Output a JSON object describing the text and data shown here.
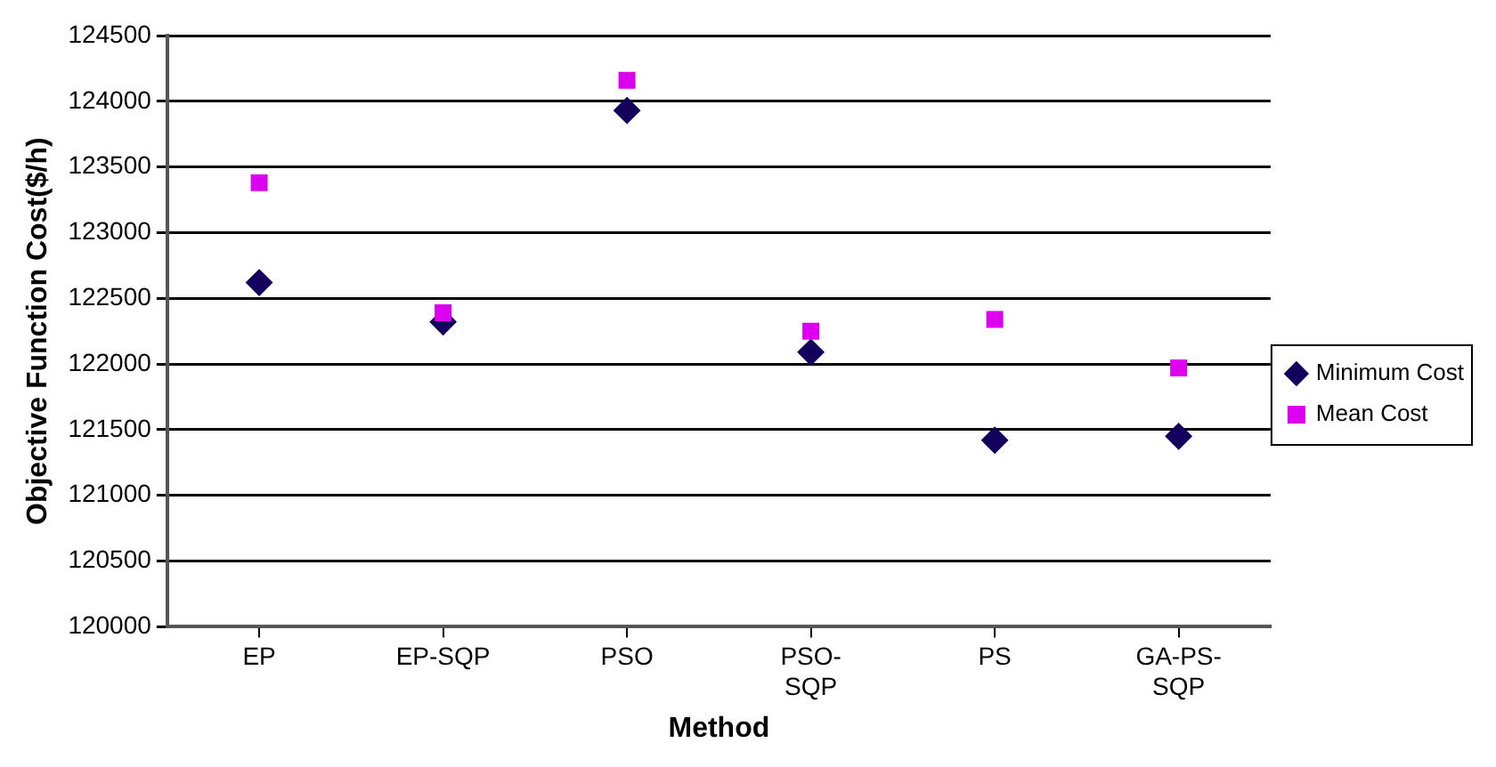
{
  "chart_data": {
    "type": "scatter",
    "xlabel": "Method",
    "ylabel": "Objective Function Cost($/h)",
    "categories": [
      "EP",
      "EP-SQP",
      "PSO",
      "PSO-SQP",
      "PS",
      "GA-PS-SQP"
    ],
    "series": [
      {
        "name": "Minimum Cost",
        "color": "#14005c",
        "marker": "diamond",
        "values": [
          122620,
          122320,
          123930,
          122090,
          121420,
          121450
        ]
      },
      {
        "name": "Mean Cost",
        "color": "#dd00f0",
        "marker": "square",
        "values": [
          123380,
          122390,
          124160,
          122250,
          122340,
          121970
        ]
      }
    ],
    "ylim": [
      120000,
      124500
    ],
    "yticks": [
      120000,
      120500,
      121000,
      121500,
      122000,
      122500,
      123000,
      123500,
      124000,
      124500
    ],
    "grid": "y",
    "legend": "right"
  }
}
